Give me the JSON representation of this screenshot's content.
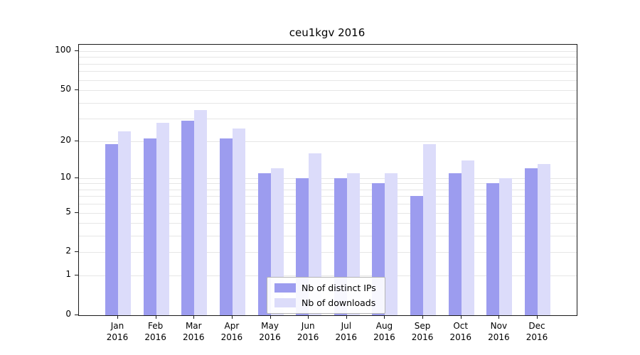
{
  "chart_data": {
    "type": "bar",
    "title": "ceu1kgv 2016",
    "categories": [
      "Jan 2016",
      "Feb 2016",
      "Mar 2016",
      "Apr 2016",
      "May 2016",
      "Jun 2016",
      "Jul 2016",
      "Aug 2016",
      "Sep 2016",
      "Oct 2016",
      "Nov 2016",
      "Dec 2016"
    ],
    "series": [
      {
        "name": "Nb of distinct IPs",
        "color": "#9c9cef",
        "values": [
          19,
          21,
          29,
          21,
          11,
          10,
          10,
          9,
          7,
          11,
          9,
          12
        ]
      },
      {
        "name": "Nb of downloads",
        "color": "#dcdcfa",
        "values": [
          24,
          28,
          35,
          25,
          12,
          16,
          11,
          11,
          19,
          14,
          10,
          13
        ]
      }
    ],
    "yscale": "log1p",
    "yticks": [
      0,
      1,
      2,
      5,
      10,
      20,
      50,
      100
    ],
    "ylim": [
      0,
      100
    ],
    "xlabel": "",
    "ylabel": "",
    "grid": true,
    "legend_position": "lower center"
  }
}
